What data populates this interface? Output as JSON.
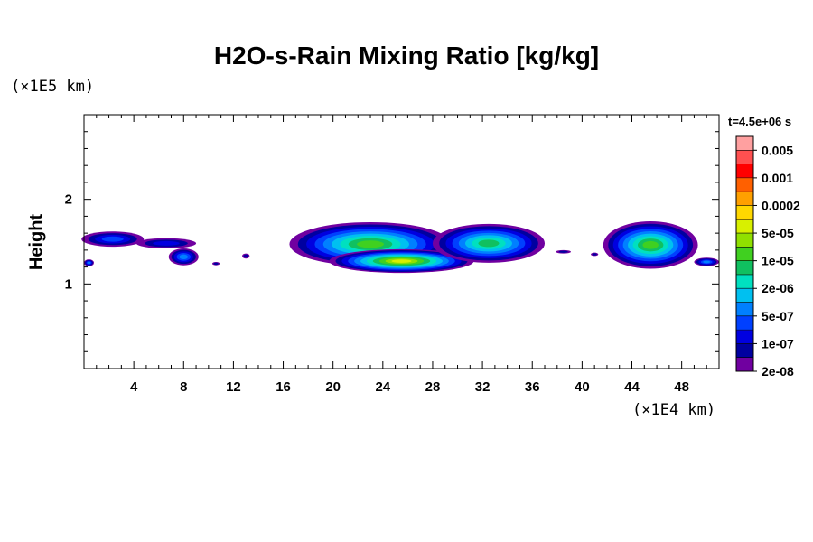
{
  "chart_data": {
    "type": "heatmap",
    "title": "H2O-s-Rain Mixing Ratio [kg/kg]",
    "xlabel": "",
    "ylabel": "Height",
    "x_unit": "(×1E4 km)",
    "y_unit": "(×1E5 km)",
    "timestamp": "t=4.5e+06 s",
    "xlim": [
      0,
      51
    ],
    "ylim": [
      0,
      3
    ],
    "x_ticks": [
      "4",
      "8",
      "12",
      "16",
      "20",
      "24",
      "28",
      "32",
      "36",
      "40",
      "44",
      "48"
    ],
    "y_ticks": [
      "1",
      "2"
    ],
    "colorbar": {
      "labels": [
        "0.005",
        "0.001",
        "0.0002",
        "5e-05",
        "1e-05",
        "2e-06",
        "5e-07",
        "1e-07",
        "2e-08"
      ],
      "colors": [
        "#ffa0a0",
        "#ff5050",
        "#ff0000",
        "#ff6000",
        "#ffa000",
        "#ffd800",
        "#d8f000",
        "#90e000",
        "#40d020",
        "#10c060",
        "#00e0c0",
        "#00c0f0",
        "#0080ff",
        "#0040ff",
        "#0000e0",
        "#0000a0",
        "#7000a0"
      ]
    },
    "clouds": [
      {
        "x": 2.3,
        "y": 1.53,
        "rx": 2.5,
        "ry": 0.09,
        "level": 3
      },
      {
        "x": 6.6,
        "y": 1.48,
        "rx": 2.4,
        "ry": 0.06,
        "level": 2
      },
      {
        "x": 0.4,
        "y": 1.25,
        "rx": 0.4,
        "ry": 0.04,
        "level": 4
      },
      {
        "x": 8.0,
        "y": 1.32,
        "rx": 1.2,
        "ry": 0.1,
        "level": 4
      },
      {
        "x": 10.6,
        "y": 1.24,
        "rx": 0.3,
        "ry": 0.02,
        "level": 1
      },
      {
        "x": 13.0,
        "y": 1.33,
        "rx": 0.3,
        "ry": 0.03,
        "level": 1
      },
      {
        "x": 23.0,
        "y": 1.47,
        "rx": 6.5,
        "ry": 0.26,
        "level": 8
      },
      {
        "x": 25.5,
        "y": 1.27,
        "rx": 5.8,
        "ry": 0.14,
        "level": 10
      },
      {
        "x": 32.5,
        "y": 1.48,
        "rx": 4.5,
        "ry": 0.23,
        "level": 7
      },
      {
        "x": 38.5,
        "y": 1.38,
        "rx": 0.6,
        "ry": 0.02,
        "level": 1
      },
      {
        "x": 41.0,
        "y": 1.35,
        "rx": 0.3,
        "ry": 0.02,
        "level": 1
      },
      {
        "x": 45.5,
        "y": 1.46,
        "rx": 3.8,
        "ry": 0.28,
        "level": 8
      },
      {
        "x": 50.0,
        "y": 1.26,
        "rx": 1.0,
        "ry": 0.05,
        "level": 4
      }
    ]
  }
}
